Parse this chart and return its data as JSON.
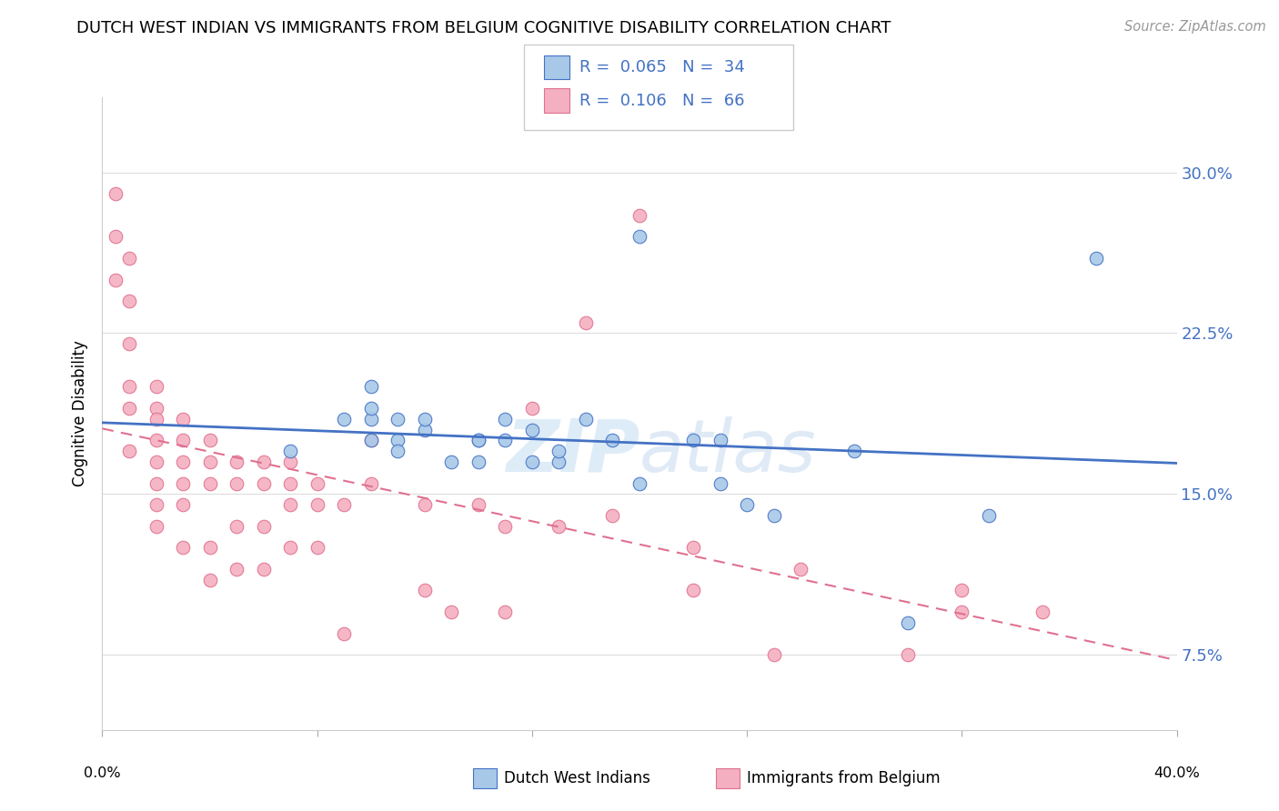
{
  "title": "DUTCH WEST INDIAN VS IMMIGRANTS FROM BELGIUM COGNITIVE DISABILITY CORRELATION CHART",
  "source": "Source: ZipAtlas.com",
  "ylabel": "Cognitive Disability",
  "yticks": [
    0.075,
    0.15,
    0.225,
    0.3
  ],
  "ytick_labels": [
    "7.5%",
    "15.0%",
    "22.5%",
    "30.0%"
  ],
  "xlim": [
    0.0,
    0.4
  ],
  "ylim": [
    0.04,
    0.335
  ],
  "legend_label1": "Dutch West Indians",
  "legend_label2": "Immigrants from Belgium",
  "legend_R1": "0.065",
  "legend_N1": "34",
  "legend_R2": "0.106",
  "legend_N2": "66",
  "color_blue": "#a8c8e8",
  "color_pink": "#f4b0c0",
  "line_color_blue": "#4472c4",
  "line_color_pink": "#e07090",
  "blue_scatter_x": [
    0.2,
    0.07,
    0.09,
    0.1,
    0.1,
    0.1,
    0.1,
    0.11,
    0.11,
    0.11,
    0.12,
    0.12,
    0.13,
    0.14,
    0.14,
    0.14,
    0.15,
    0.15,
    0.16,
    0.16,
    0.17,
    0.17,
    0.18,
    0.19,
    0.2,
    0.22,
    0.23,
    0.23,
    0.24,
    0.25,
    0.3,
    0.33,
    0.37,
    0.28
  ],
  "blue_scatter_y": [
    0.27,
    0.17,
    0.185,
    0.185,
    0.19,
    0.2,
    0.175,
    0.175,
    0.17,
    0.185,
    0.18,
    0.185,
    0.165,
    0.175,
    0.165,
    0.175,
    0.185,
    0.175,
    0.18,
    0.165,
    0.165,
    0.17,
    0.185,
    0.175,
    0.155,
    0.175,
    0.155,
    0.175,
    0.145,
    0.14,
    0.09,
    0.14,
    0.26,
    0.17
  ],
  "pink_scatter_x": [
    0.005,
    0.005,
    0.005,
    0.01,
    0.01,
    0.01,
    0.01,
    0.01,
    0.01,
    0.02,
    0.02,
    0.02,
    0.02,
    0.02,
    0.02,
    0.02,
    0.02,
    0.03,
    0.03,
    0.03,
    0.03,
    0.03,
    0.03,
    0.04,
    0.04,
    0.04,
    0.04,
    0.04,
    0.05,
    0.05,
    0.05,
    0.05,
    0.06,
    0.06,
    0.06,
    0.06,
    0.07,
    0.07,
    0.07,
    0.07,
    0.08,
    0.08,
    0.08,
    0.09,
    0.09,
    0.1,
    0.1,
    0.12,
    0.12,
    0.13,
    0.14,
    0.15,
    0.15,
    0.16,
    0.17,
    0.18,
    0.19,
    0.2,
    0.22,
    0.22,
    0.25,
    0.26,
    0.3,
    0.32,
    0.32,
    0.35
  ],
  "pink_scatter_y": [
    0.29,
    0.27,
    0.25,
    0.26,
    0.24,
    0.22,
    0.2,
    0.19,
    0.17,
    0.2,
    0.19,
    0.185,
    0.175,
    0.165,
    0.155,
    0.145,
    0.135,
    0.185,
    0.175,
    0.165,
    0.155,
    0.145,
    0.125,
    0.175,
    0.165,
    0.155,
    0.125,
    0.11,
    0.165,
    0.155,
    0.135,
    0.115,
    0.165,
    0.155,
    0.135,
    0.115,
    0.165,
    0.155,
    0.145,
    0.125,
    0.155,
    0.145,
    0.125,
    0.145,
    0.085,
    0.175,
    0.155,
    0.145,
    0.105,
    0.095,
    0.145,
    0.135,
    0.095,
    0.19,
    0.135,
    0.23,
    0.14,
    0.28,
    0.125,
    0.105,
    0.075,
    0.115,
    0.075,
    0.105,
    0.095,
    0.095
  ]
}
